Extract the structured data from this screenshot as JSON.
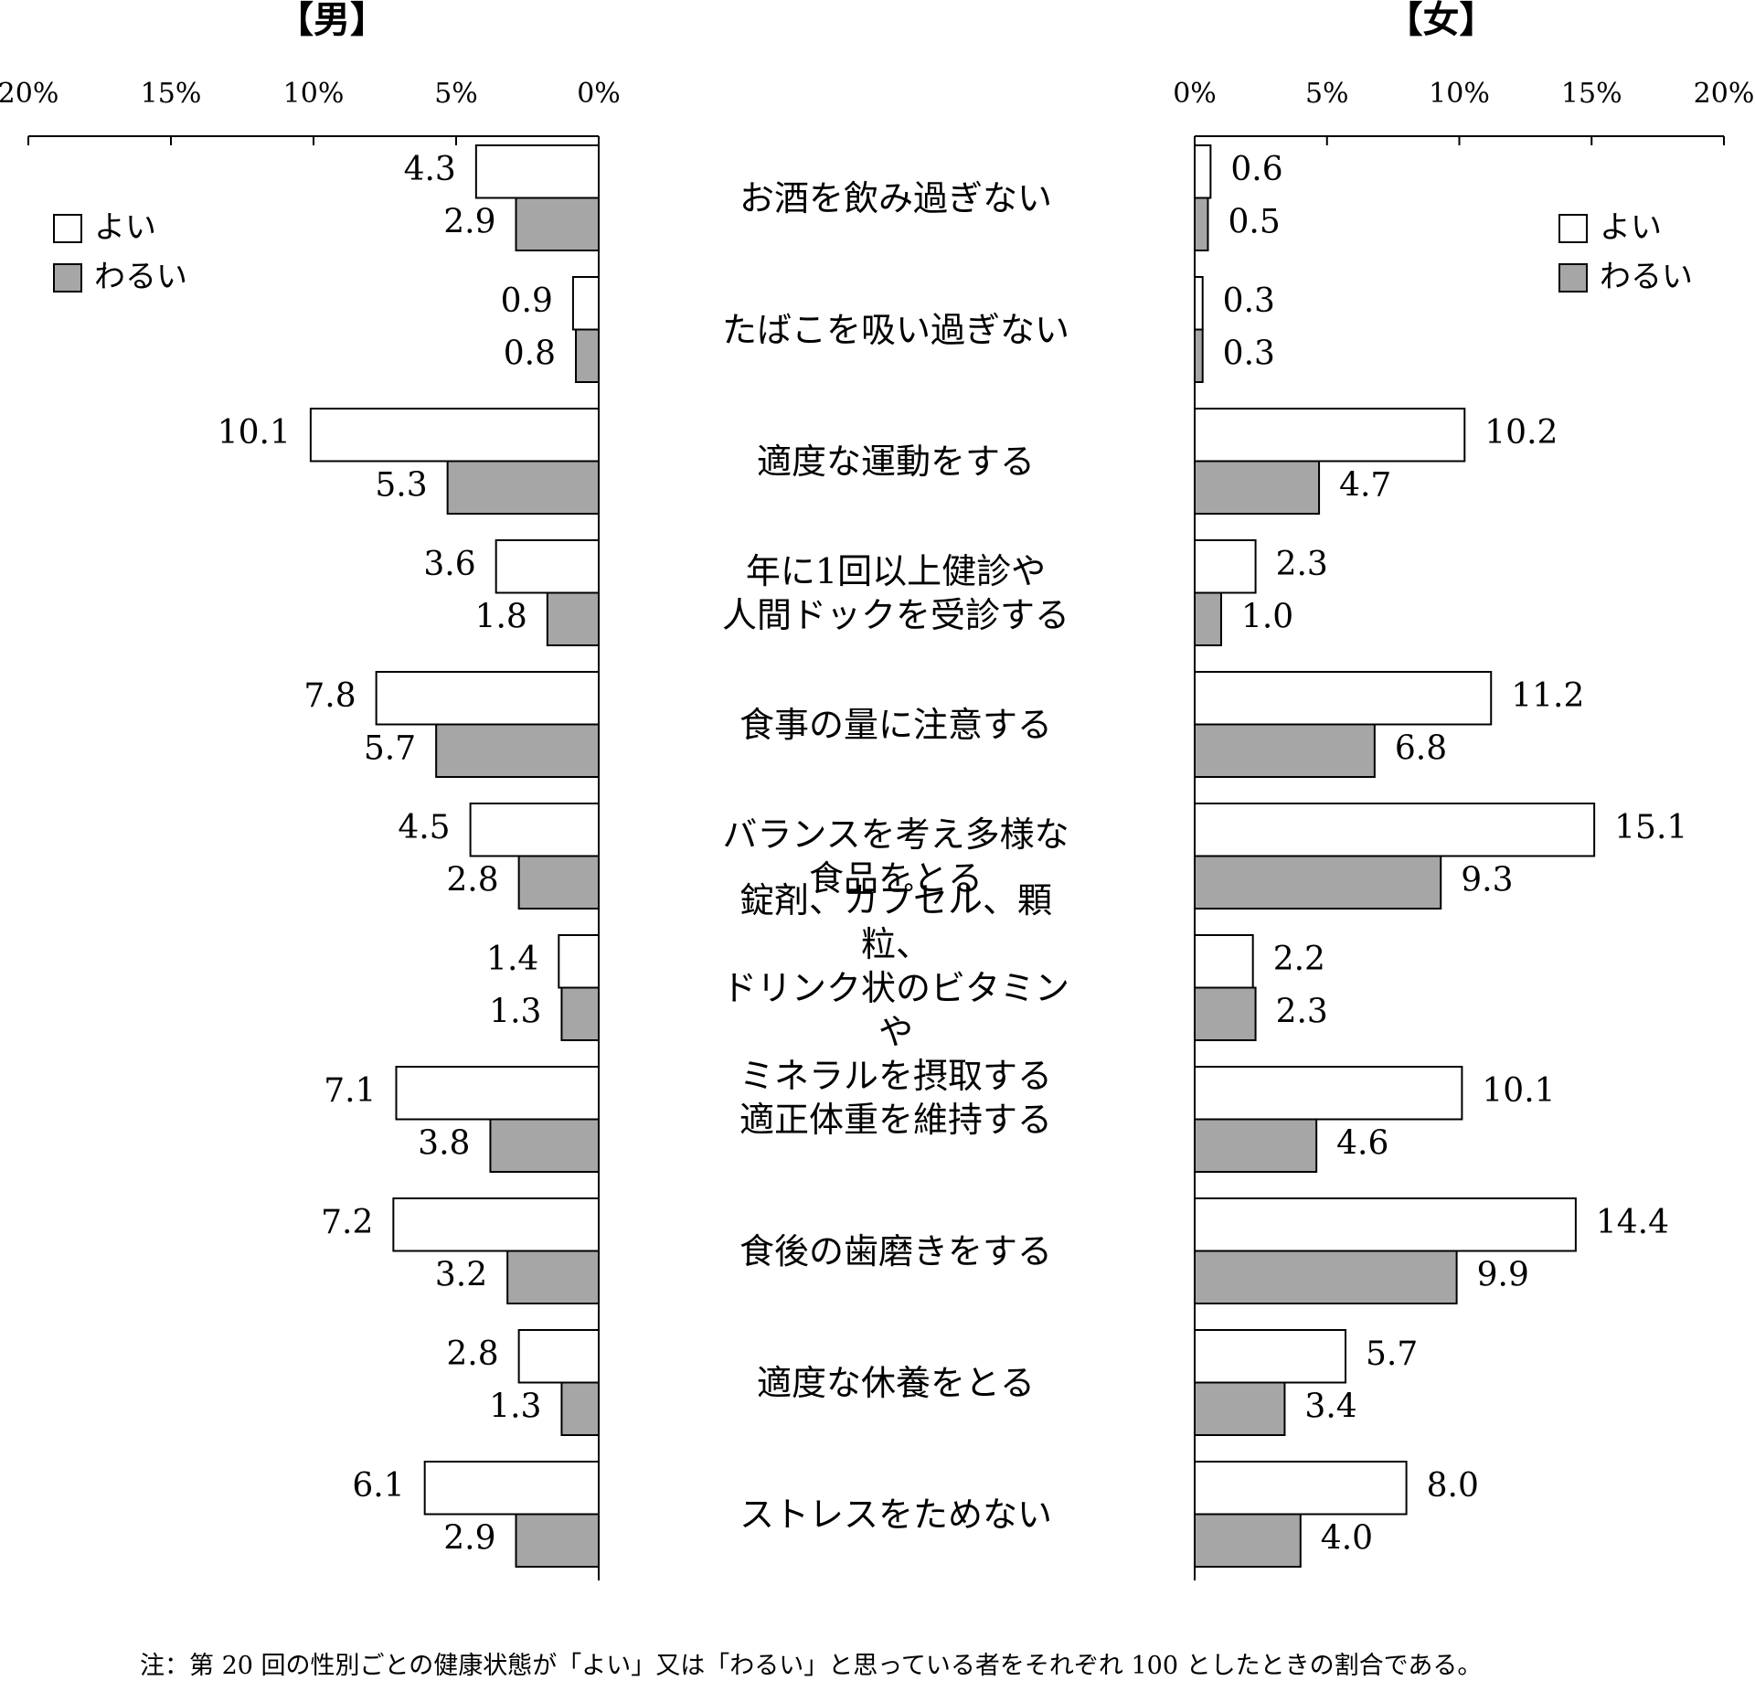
{
  "chart_data": [
    {
      "type": "bar",
      "title": "【男】",
      "categories": [
        "お酒を飲み過ぎない",
        "たばこを吸い過ぎない",
        "適度な運動をする",
        "年に1回以上健診や\n人間ドックを受診する",
        "食事の量に注意する",
        "バランスを考え多様な\n食品をとる",
        "錠剤、カプセル、顆粒、\nドリンク状のビタミンや\nミネラルを摂取する",
        "適正体重を維持する",
        "食後の歯磨きをする",
        "適度な休養をとる",
        "ストレスをためない"
      ],
      "series": [
        {
          "name": "よい",
          "color": "#ffffff",
          "values": [
            4.3,
            0.9,
            10.1,
            3.6,
            7.8,
            4.5,
            1.4,
            7.1,
            7.2,
            2.8,
            6.1
          ]
        },
        {
          "name": "わるい",
          "color": "#a6a6a6",
          "values": [
            2.9,
            0.8,
            5.3,
            1.8,
            5.7,
            2.8,
            1.3,
            3.8,
            3.2,
            1.3,
            2.9
          ]
        }
      ],
      "xlim": [
        20,
        0
      ],
      "xticks": [
        {
          "value": 20,
          "label": "20%"
        },
        {
          "value": 15,
          "label": "15%"
        },
        {
          "value": 10,
          "label": "10%"
        },
        {
          "value": 5,
          "label": "5%"
        },
        {
          "value": 0,
          "label": "0%"
        }
      ],
      "legend": "upper left"
    },
    {
      "type": "bar",
      "title": "【女】",
      "series": [
        {
          "name": "よい",
          "color": "#ffffff",
          "values": [
            0.6,
            0.3,
            10.2,
            2.3,
            11.2,
            15.1,
            2.2,
            10.1,
            14.4,
            5.7,
            8.0
          ],
          "value_labels": [
            "0.6",
            "0.3",
            "10.2",
            "2.3",
            "11.2",
            "15.1",
            "2.2",
            "10.1",
            "14.4",
            "5.7",
            "8.0"
          ]
        },
        {
          "name": "わるい",
          "color": "#a6a6a6",
          "values": [
            0.5,
            0.3,
            4.7,
            1.0,
            6.8,
            9.3,
            2.3,
            4.6,
            9.9,
            3.4,
            4.0
          ],
          "value_labels": [
            "0.5",
            "0.3",
            "4.7",
            "1.0",
            "6.8",
            "9.3",
            "2.3",
            "4.6",
            "9.9",
            "3.4",
            "4.0"
          ]
        }
      ],
      "xlim": [
        0,
        20
      ],
      "xticks": [
        {
          "value": 0,
          "label": "0%"
        },
        {
          "value": 5,
          "label": "5%"
        },
        {
          "value": 10,
          "label": "10%"
        },
        {
          "value": 15,
          "label": "15%"
        },
        {
          "value": 20,
          "label": "20%"
        }
      ],
      "legend": "upper right"
    }
  ],
  "note": "注：第 20 回の性別ごとの健康状態が「よい」又は「わるい」と思っている者をそれぞれ 100 としたときの割合である。"
}
